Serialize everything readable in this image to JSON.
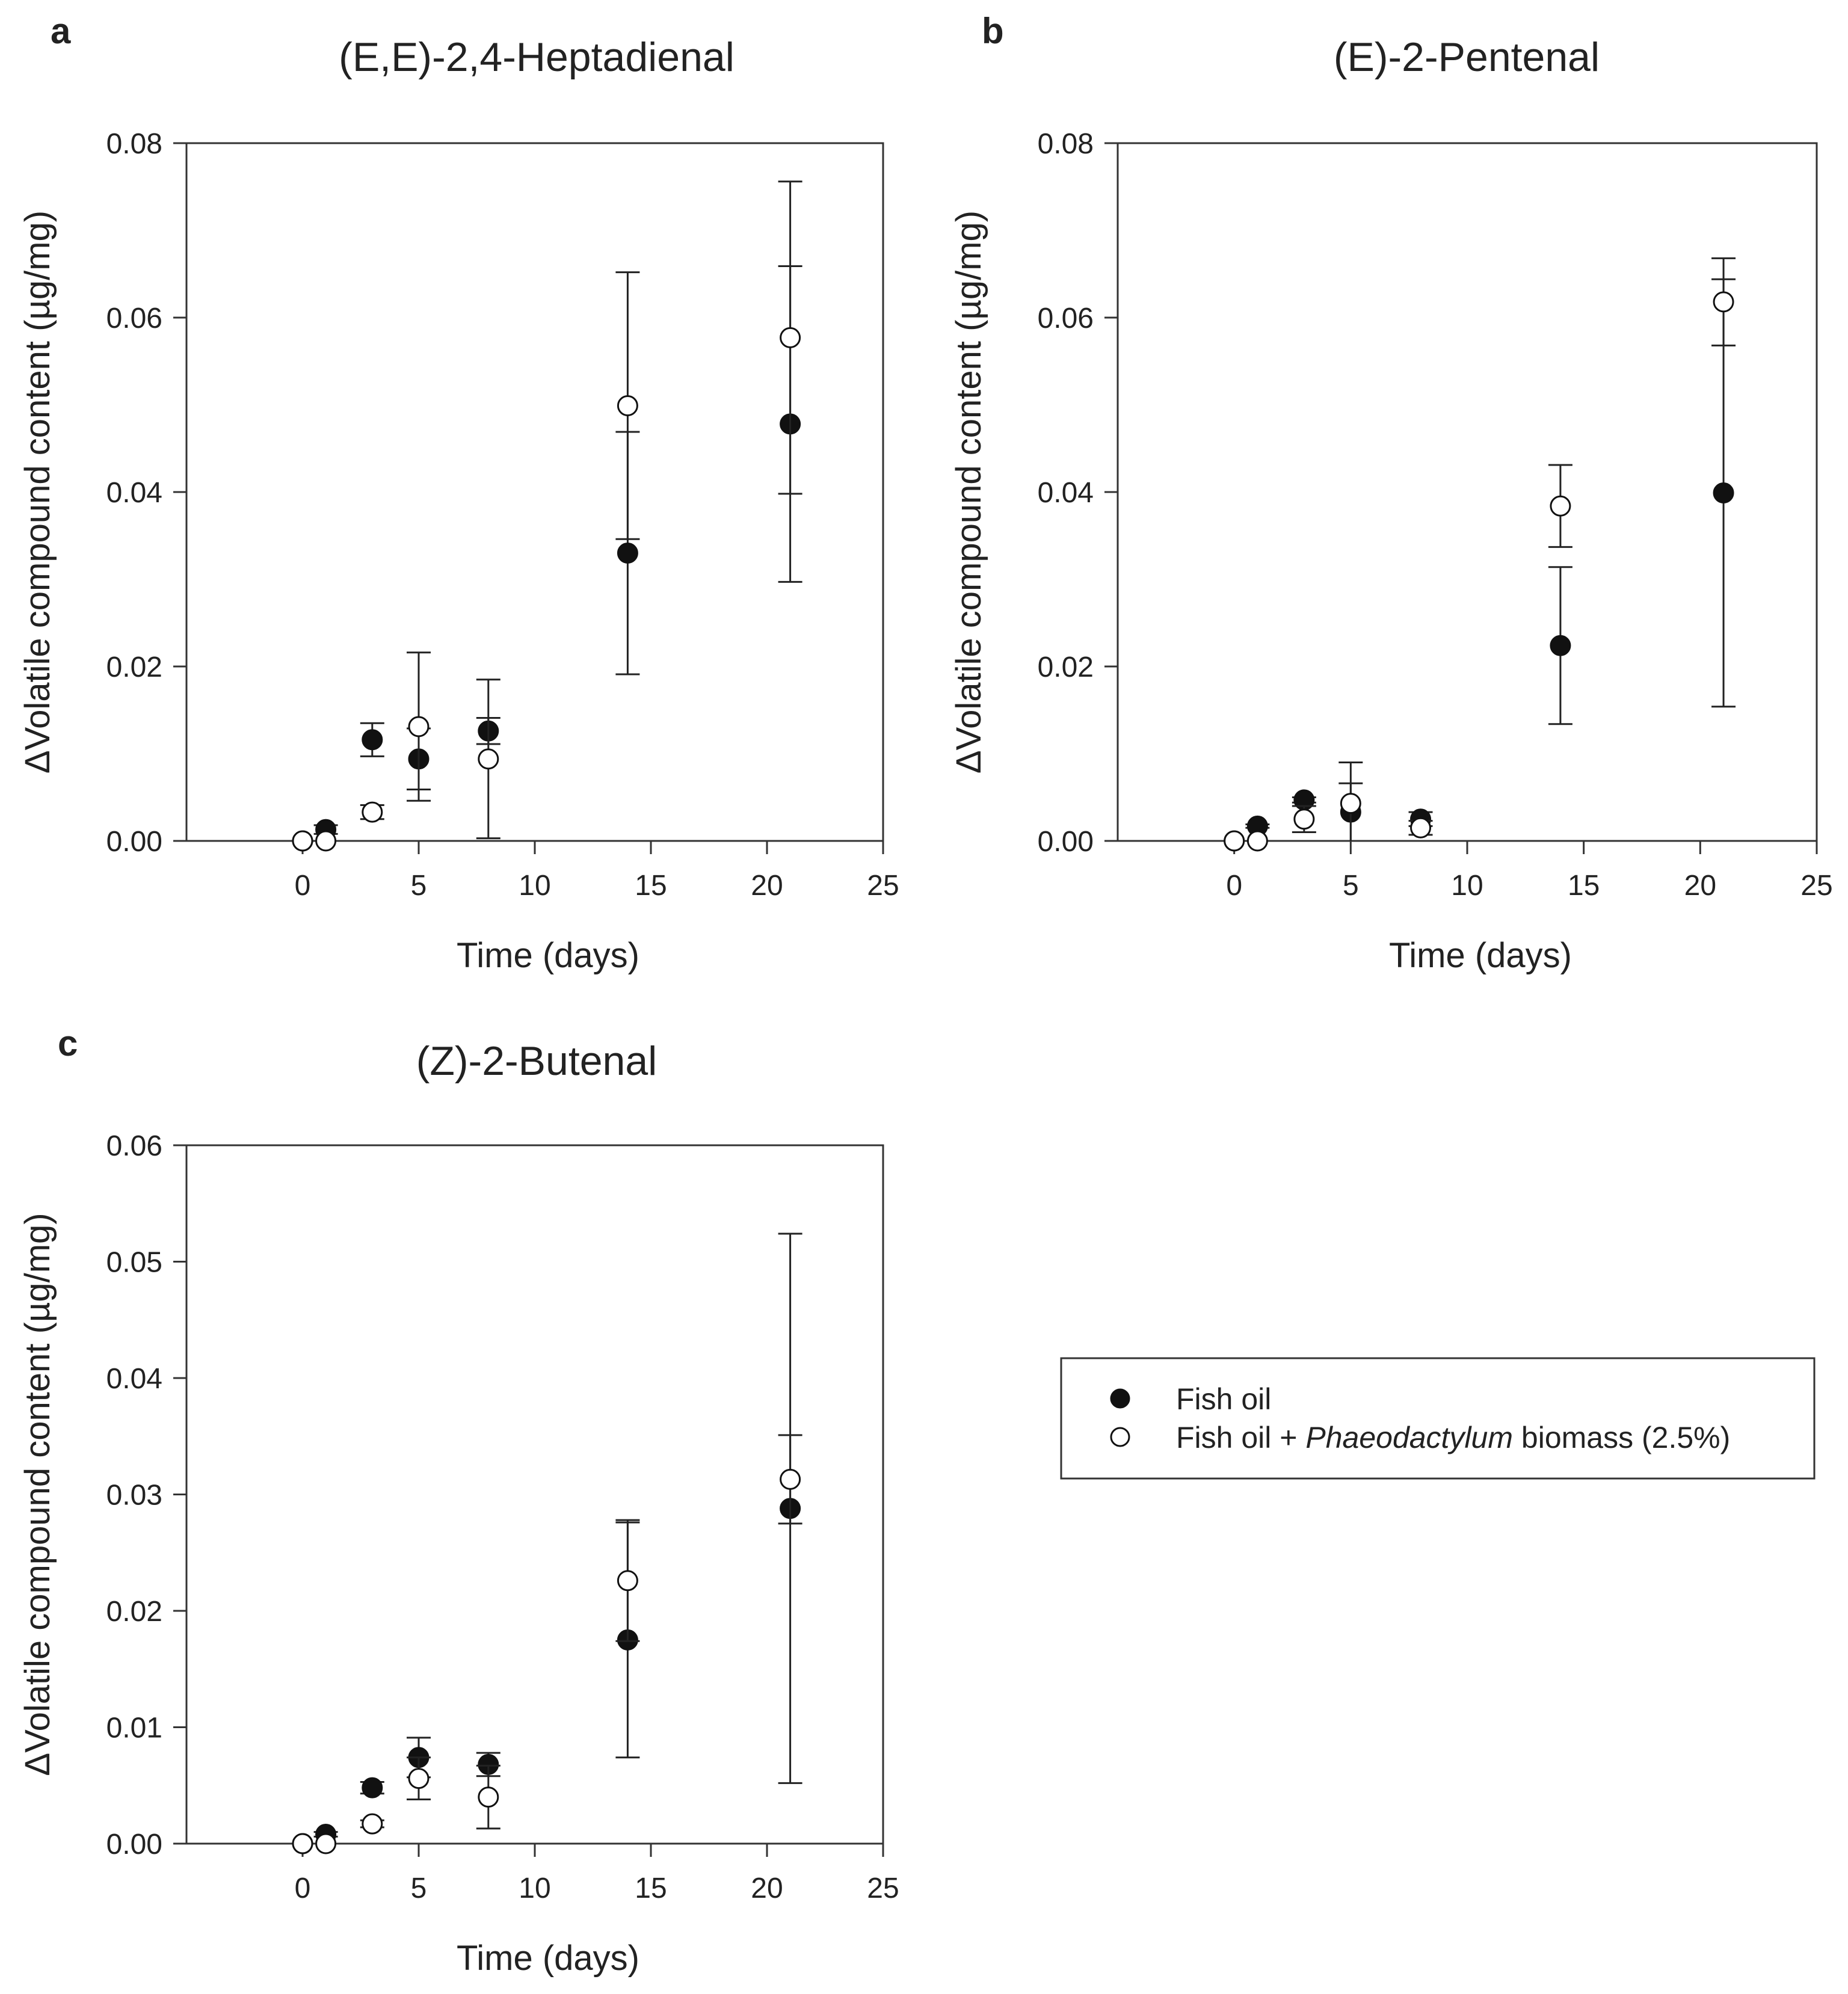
{
  "chart_data": [
    {
      "type": "scatter",
      "panel": "a",
      "title": "(E,E)-2,4-Heptadienal",
      "xlabel": "Time (days)",
      "ylabel": "ΔVolatile compound content (µg/mg)",
      "xlim": [
        -5,
        25
      ],
      "ylim": [
        0,
        0.08
      ],
      "xticks": [
        "0",
        "5",
        "10",
        "15",
        "20",
        "25"
      ],
      "yticks": [
        "0.00",
        "0.02",
        "0.04",
        "0.06",
        "0.08"
      ],
      "grid": false,
      "series": [
        {
          "name": "Fish oil",
          "marker": "filled-circle",
          "x": [
            0,
            1,
            3,
            5,
            8,
            14,
            21
          ],
          "y": [
            0.0,
            0.0013,
            0.0116,
            0.0094,
            0.0126,
            0.033,
            0.0478
          ],
          "err": [
            0.0,
            0.0005,
            0.0019,
            0.0035,
            0.0015,
            0.0139,
            0.0181
          ]
        },
        {
          "name": "Fish oil + Phaeodactylum biomass (2.5%)",
          "marker": "open-circle",
          "x": [
            0,
            1,
            3,
            5,
            8,
            14,
            21
          ],
          "y": [
            0.0,
            0.0,
            0.0033,
            0.0131,
            0.0094,
            0.0499,
            0.0577
          ],
          "err": [
            0.0,
            0.0,
            0.0008,
            0.0085,
            0.0091,
            0.0153,
            0.0179
          ]
        }
      ]
    },
    {
      "type": "scatter",
      "panel": "b",
      "title": "(E)-2-Pentenal",
      "xlabel": "Time (days)",
      "ylabel": "ΔVolatile compound content (µg/mg)",
      "xlim": [
        -5,
        25
      ],
      "ylim": [
        0,
        0.08
      ],
      "xticks": [
        "0",
        "5",
        "10",
        "15",
        "20",
        "25"
      ],
      "yticks": [
        "0.00",
        "0.02",
        "0.04",
        "0.06",
        "0.08"
      ],
      "grid": false,
      "series": [
        {
          "name": "Fish oil",
          "marker": "filled-circle",
          "x": [
            0,
            1,
            3,
            5,
            8,
            14,
            21
          ],
          "y": [
            0.0,
            0.0017,
            0.0047,
            0.0033,
            0.0025,
            0.0224,
            0.0399
          ],
          "err": [
            0.0,
            0.0002,
            0.0003,
            0.0033,
            0.0008,
            0.009,
            0.0245
          ]
        },
        {
          "name": "Fish oil + Phaeodactylum biomass (2.5%)",
          "marker": "open-circle",
          "x": [
            0,
            1,
            3,
            5,
            8,
            14,
            21
          ],
          "y": [
            0.0,
            0.0,
            0.0025,
            0.0043,
            0.0015,
            0.0384,
            0.0618
          ],
          "err": [
            0.0,
            0.0,
            0.0015,
            0.0047,
            0.0008,
            0.0047,
            0.005
          ]
        }
      ]
    },
    {
      "type": "scatter",
      "panel": "c",
      "title": "(Z)-2-Butenal",
      "xlabel": "Time (days)",
      "ylabel": "ΔVolatile compound content (µg/mg)",
      "xlim": [
        -5,
        25
      ],
      "ylim": [
        0,
        0.06
      ],
      "xticks": [
        "0",
        "5",
        "10",
        "15",
        "20",
        "25"
      ],
      "yticks": [
        "0.00",
        "0.01",
        "0.02",
        "0.03",
        "0.04",
        "0.05",
        "0.06"
      ],
      "grid": false,
      "series": [
        {
          "name": "Fish oil",
          "marker": "filled-circle",
          "x": [
            0,
            1,
            3,
            5,
            8,
            14,
            21
          ],
          "y": [
            0.0,
            0.0008,
            0.0048,
            0.0074,
            0.0068,
            0.0175,
            0.0288
          ],
          "err": [
            0.0,
            0.0002,
            0.0005,
            0.0017,
            0.001,
            0.0101,
            0.0236
          ]
        },
        {
          "name": "Fish oil + Phaeodactylum biomass (2.5%)",
          "marker": "open-circle",
          "x": [
            0,
            1,
            3,
            5,
            8,
            14,
            21
          ],
          "y": [
            0.0,
            0.0,
            0.0017,
            0.0056,
            0.004,
            0.0226,
            0.0313
          ],
          "err": [
            0.0,
            0.0,
            0.0003,
            0.0018,
            0.0027,
            0.0052,
            0.0038
          ]
        }
      ]
    }
  ],
  "legend": {
    "position": "right-of-panel-c",
    "entries": [
      {
        "marker": "filled-circle",
        "text_plain": "Fish oil"
      },
      {
        "marker": "open-circle",
        "text_pre": "Fish oil + ",
        "text_italic": "Phaeodactylum",
        "text_post": " biomass (2.5%)"
      }
    ]
  }
}
